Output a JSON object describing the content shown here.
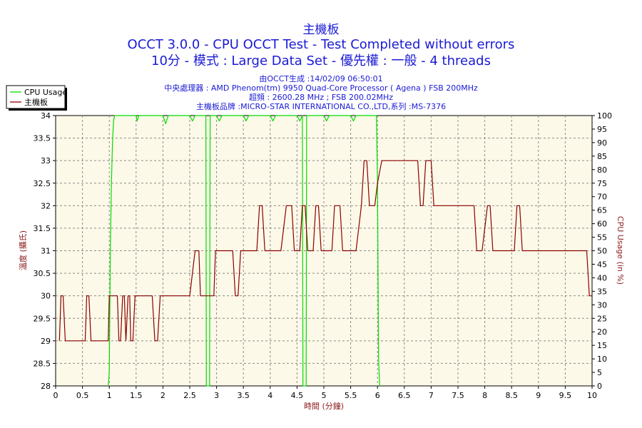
{
  "titles": {
    "main": "主機板",
    "line1": "OCCT 3.0.0 - CPU OCCT Test - Test Completed without errors",
    "line2": "10分 - 模式 : Large Data Set - 優先權 : 一般 - 4 threads",
    "info1": "由OCCT生成 :14/02/09 06:50:01",
    "info2": "中央處理器 : AMD Phenom(tm) 9950 Quad-Core Processor ( Agena ) FSB 200MHz",
    "info3": "超頻 : 2600.28 MHz ; FSB 200.02MHz",
    "info4": "主機板品牌 :MICRO-STAR INTERNATIONAL CO.,LTD,系列 :MS-7376"
  },
  "colors": {
    "plot_bg": "#fdf9e8",
    "grid": "#8a8a8a",
    "cpu_line": "#00dd00",
    "temp_line": "#8b0000",
    "title": "#1a1ad6",
    "axis_label": "#8b1a1a"
  },
  "chart_data": {
    "type": "line",
    "xlabel": "時間 (分鐘)",
    "ylabel_left": "溫度 (攝氏)",
    "ylabel_right": "CPU Usage (in %)",
    "xlim": [
      0,
      10
    ],
    "ylim_left": [
      28,
      34
    ],
    "ylim_right": [
      0,
      100
    ],
    "x_ticks": [
      "0",
      "0.5",
      "1",
      "1.5",
      "2",
      "2.5",
      "3",
      "3.5",
      "4",
      "4.5",
      "5",
      "5.5",
      "6",
      "6.5",
      "7",
      "7.5",
      "8",
      "8.5",
      "9",
      "9.5",
      "10"
    ],
    "y_left_ticks": [
      "28",
      "28.5",
      "29",
      "29.5",
      "30",
      "30.5",
      "31",
      "31.5",
      "32",
      "32.5",
      "33",
      "33.5",
      "34"
    ],
    "y_right_ticks": [
      "0",
      "5",
      "10",
      "15",
      "20",
      "25",
      "30",
      "35",
      "40",
      "45",
      "50",
      "55",
      "60",
      "65",
      "70",
      "75",
      "80",
      "85",
      "90",
      "95",
      "100"
    ],
    "grid": true,
    "legend_position": "top-left",
    "series": [
      {
        "name": "CPU Usage",
        "axis": "right",
        "points": [
          [
            0.98,
            0
          ],
          [
            1.0,
            5
          ],
          [
            1.02,
            50
          ],
          [
            1.04,
            75
          ],
          [
            1.06,
            90
          ],
          [
            1.08,
            98
          ],
          [
            1.1,
            100
          ],
          [
            1.5,
            100
          ],
          [
            1.52,
            98
          ],
          [
            1.55,
            100
          ],
          [
            2.0,
            100
          ],
          [
            2.05,
            97
          ],
          [
            2.1,
            100
          ],
          [
            2.5,
            100
          ],
          [
            2.55,
            98
          ],
          [
            2.6,
            100
          ],
          [
            2.8,
            100
          ],
          [
            2.81,
            0
          ],
          [
            2.87,
            0
          ],
          [
            2.88,
            100
          ],
          [
            3.0,
            100
          ],
          [
            3.05,
            98
          ],
          [
            3.1,
            100
          ],
          [
            3.5,
            100
          ],
          [
            3.55,
            98
          ],
          [
            3.6,
            100
          ],
          [
            4.0,
            100
          ],
          [
            4.05,
            98
          ],
          [
            4.1,
            100
          ],
          [
            4.5,
            100
          ],
          [
            4.55,
            98
          ],
          [
            4.6,
            100
          ],
          [
            4.61,
            0
          ],
          [
            4.67,
            0
          ],
          [
            4.68,
            100
          ],
          [
            5.0,
            100
          ],
          [
            5.05,
            98
          ],
          [
            5.1,
            100
          ],
          [
            5.5,
            100
          ],
          [
            5.55,
            98
          ],
          [
            5.6,
            100
          ],
          [
            5.98,
            100
          ],
          [
            6.0,
            75
          ],
          [
            6.02,
            10
          ],
          [
            6.04,
            0
          ]
        ]
      },
      {
        "name": "主機板",
        "axis": "left",
        "points": [
          [
            0.07,
            29
          ],
          [
            0.1,
            30
          ],
          [
            0.14,
            30
          ],
          [
            0.18,
            29
          ],
          [
            0.55,
            29
          ],
          [
            0.58,
            30
          ],
          [
            0.62,
            30
          ],
          [
            0.66,
            29
          ],
          [
            0.98,
            29
          ],
          [
            1.0,
            30
          ],
          [
            1.15,
            30
          ],
          [
            1.18,
            29
          ],
          [
            1.21,
            29
          ],
          [
            1.25,
            30
          ],
          [
            1.28,
            30
          ],
          [
            1.31,
            29
          ],
          [
            1.35,
            30
          ],
          [
            1.38,
            30
          ],
          [
            1.4,
            29
          ],
          [
            1.44,
            29
          ],
          [
            1.48,
            30
          ],
          [
            1.8,
            30
          ],
          [
            1.85,
            29
          ],
          [
            1.9,
            29
          ],
          [
            1.95,
            30
          ],
          [
            2.5,
            30
          ],
          [
            2.6,
            31
          ],
          [
            2.67,
            31
          ],
          [
            2.7,
            30
          ],
          [
            2.95,
            30
          ],
          [
            2.98,
            31
          ],
          [
            3.3,
            31
          ],
          [
            3.35,
            30
          ],
          [
            3.4,
            30
          ],
          [
            3.45,
            31
          ],
          [
            3.75,
            31
          ],
          [
            3.8,
            32
          ],
          [
            3.85,
            32
          ],
          [
            3.9,
            31
          ],
          [
            4.2,
            31
          ],
          [
            4.3,
            32
          ],
          [
            4.4,
            32
          ],
          [
            4.45,
            31
          ],
          [
            4.55,
            31
          ],
          [
            4.6,
            32
          ],
          [
            4.65,
            32
          ],
          [
            4.7,
            31
          ],
          [
            4.8,
            31
          ],
          [
            4.85,
            32
          ],
          [
            4.9,
            32
          ],
          [
            4.95,
            31
          ],
          [
            5.15,
            31
          ],
          [
            5.2,
            32
          ],
          [
            5.3,
            32
          ],
          [
            5.35,
            31
          ],
          [
            5.6,
            31
          ],
          [
            5.7,
            32
          ],
          [
            5.75,
            33
          ],
          [
            5.8,
            33
          ],
          [
            5.85,
            32
          ],
          [
            5.95,
            32
          ],
          [
            6.0,
            32.5
          ],
          [
            6.08,
            33
          ],
          [
            6.75,
            33
          ],
          [
            6.8,
            32
          ],
          [
            6.85,
            32
          ],
          [
            6.9,
            33
          ],
          [
            7.0,
            33
          ],
          [
            7.05,
            32
          ],
          [
            7.8,
            32
          ],
          [
            7.85,
            31
          ],
          [
            7.95,
            31
          ],
          [
            8.05,
            32
          ],
          [
            8.1,
            32
          ],
          [
            8.15,
            31
          ],
          [
            8.55,
            31
          ],
          [
            8.6,
            32
          ],
          [
            8.65,
            32
          ],
          [
            8.7,
            31
          ],
          [
            9.9,
            31
          ],
          [
            9.95,
            30
          ],
          [
            10.0,
            30
          ]
        ]
      }
    ]
  }
}
